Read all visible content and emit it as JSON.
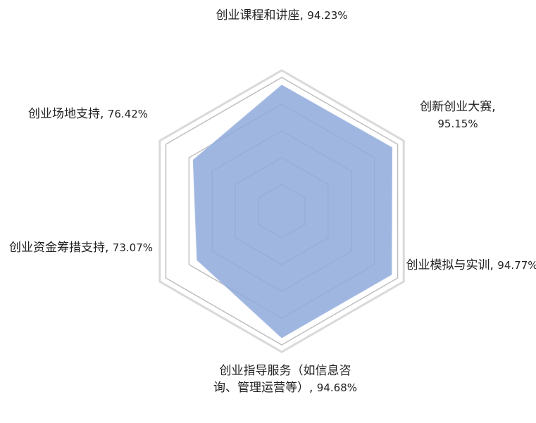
{
  "chart_data": {
    "type": "radar",
    "categories": [
      "创业课程和讲座,",
      "创新创业大赛,",
      "创业模拟与实训,",
      "创业指导服务（如信息咨询、管理运营等）,",
      "创业资金筹措支持,",
      "创业场地支持,"
    ],
    "values": [
      94.23,
      95.15,
      94.77,
      94.68,
      73.07,
      76.42
    ],
    "value_labels": [
      "94.23%",
      "95.15%",
      "94.77%",
      "94.68%",
      "73.07%",
      "76.42%"
    ],
    "color": "#8eaadb",
    "ylim": [
      0,
      100
    ],
    "yticks": [
      0,
      20,
      40,
      60,
      80,
      100
    ],
    "grid": true
  }
}
